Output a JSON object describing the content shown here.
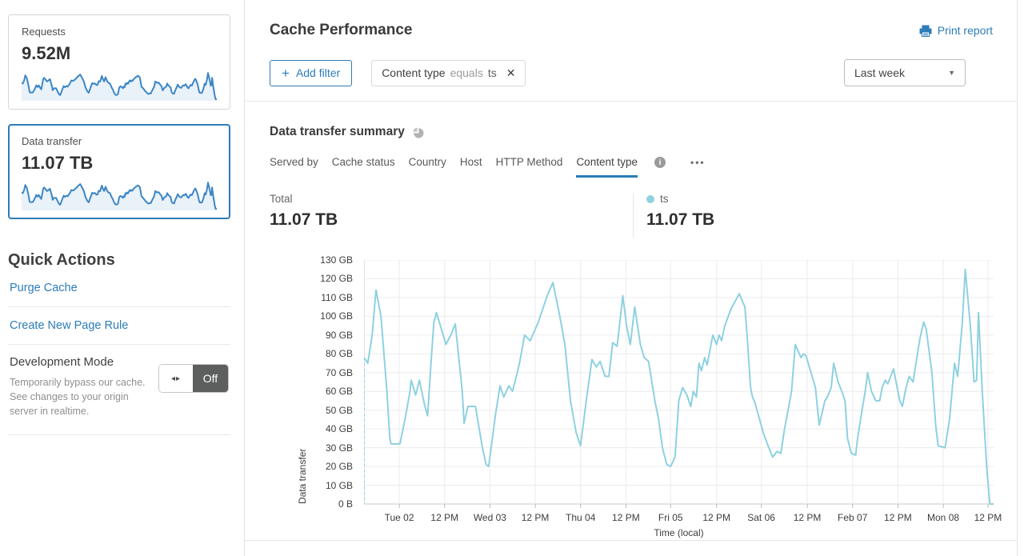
{
  "colors": {
    "accent": "#2c7cb8",
    "tab_underline": "#2a7cb8",
    "chart_line": "#8ed1e1",
    "spark_line": "#3c86c5",
    "spark_fill": "#e9f1f9",
    "toggle_off_bg": "#5d5f5e",
    "gridline": "#ececec",
    "axis_line": "#c8c8c8"
  },
  "sidebar": {
    "cards": [
      {
        "label": "Requests",
        "value": "9.52M",
        "selected": false
      },
      {
        "label": "Data transfer",
        "value": "11.07 TB",
        "selected": true
      }
    ],
    "quick_actions": {
      "title": "Quick Actions",
      "links": [
        "Purge Cache",
        "Create New Page Rule"
      ],
      "dev_mode": {
        "title": "Development Mode",
        "description": "Temporarily bypass our cache. See changes to your origin server in realtime.",
        "toggle_label": "Off"
      }
    }
  },
  "header": {
    "title": "Cache Performance",
    "print_label": "Print report",
    "time_range": "Last week"
  },
  "filters": {
    "add_label": "Add filter",
    "chip": {
      "field": "Content type",
      "operator": "equals",
      "value": "ts"
    }
  },
  "summary": {
    "title": "Data transfer summary",
    "tabs": [
      "Served by",
      "Cache status",
      "Country",
      "Host",
      "HTTP Method",
      "Content type"
    ],
    "active_tab": "Content type",
    "more_label": "•••",
    "total_label": "Total",
    "total_value": "11.07 TB",
    "series_label": "ts",
    "series_value": "11.07 TB"
  },
  "chart_data": {
    "type": "line",
    "title": "Data transfer summary",
    "xlabel": "Time (local)",
    "ylabel": "Data transfer",
    "ylim": [
      0,
      130
    ],
    "y_unit": "GB",
    "grid": true,
    "start_boundary_dashed": true,
    "y_ticks": [
      "0 B",
      "10 GB",
      "20 GB",
      "30 GB",
      "40 GB",
      "50 GB",
      "60 GB",
      "70 GB",
      "80 GB",
      "90 GB",
      "100 GB",
      "110 GB",
      "120 GB",
      "130 GB"
    ],
    "x_ticks": [
      {
        "label": "Tue 02",
        "pos": 5.6
      },
      {
        "label": "12 PM",
        "pos": 12.8
      },
      {
        "label": "Wed 03",
        "pos": 20.0
      },
      {
        "label": "12 PM",
        "pos": 27.2
      },
      {
        "label": "Thu 04",
        "pos": 34.4
      },
      {
        "label": "12 PM",
        "pos": 41.6
      },
      {
        "label": "Fri 05",
        "pos": 48.7
      },
      {
        "label": "12 PM",
        "pos": 56.0
      },
      {
        "label": "Sat 06",
        "pos": 63.1
      },
      {
        "label": "12 PM",
        "pos": 70.4
      },
      {
        "label": "Feb 07",
        "pos": 77.6
      },
      {
        "label": "12 PM",
        "pos": 84.8
      },
      {
        "label": "Mon 08",
        "pos": 92.0
      },
      {
        "label": "12 PM",
        "pos": 99.1
      }
    ],
    "series": [
      {
        "name": "ts",
        "color": "#8ed1e1",
        "points": [
          [
            0,
            78
          ],
          [
            0.6,
            75
          ],
          [
            1.3,
            90
          ],
          [
            1.9,
            114
          ],
          [
            2.7,
            100
          ],
          [
            3.6,
            62
          ],
          [
            4.1,
            35
          ],
          [
            4.3,
            32
          ],
          [
            5.7,
            32
          ],
          [
            6.5,
            45
          ],
          [
            7.3,
            60
          ],
          [
            7.5,
            66
          ],
          [
            8.2,
            58
          ],
          [
            8.8,
            66
          ],
          [
            9.6,
            53
          ],
          [
            10.1,
            47
          ],
          [
            10.7,
            78
          ],
          [
            11.1,
            97
          ],
          [
            11.5,
            102
          ],
          [
            12.4,
            92
          ],
          [
            13,
            85
          ],
          [
            13.8,
            90
          ],
          [
            14.5,
            96
          ],
          [
            15.6,
            60
          ],
          [
            15.9,
            43
          ],
          [
            16.5,
            52
          ],
          [
            17.7,
            52
          ],
          [
            18.8,
            30
          ],
          [
            19.4,
            21
          ],
          [
            19.8,
            20
          ],
          [
            20.4,
            35
          ],
          [
            20.9,
            48
          ],
          [
            21.6,
            63
          ],
          [
            22.2,
            57
          ],
          [
            23,
            63
          ],
          [
            23.6,
            60
          ],
          [
            24.7,
            75
          ],
          [
            25.5,
            90
          ],
          [
            26.4,
            87
          ],
          [
            27.7,
            97
          ],
          [
            29,
            110
          ],
          [
            30,
            118
          ],
          [
            31.1,
            100
          ],
          [
            31.9,
            85
          ],
          [
            32.8,
            55
          ],
          [
            33.7,
            38
          ],
          [
            34.4,
            31
          ],
          [
            35.3,
            55
          ],
          [
            36.2,
            77
          ],
          [
            36.9,
            73
          ],
          [
            37.5,
            76
          ],
          [
            38.3,
            68
          ],
          [
            38.9,
            68
          ],
          [
            39.5,
            86
          ],
          [
            40.2,
            84
          ],
          [
            41.1,
            111
          ],
          [
            41.7,
            95
          ],
          [
            42.3,
            85
          ],
          [
            43,
            105
          ],
          [
            43.9,
            85
          ],
          [
            44.5,
            78
          ],
          [
            45.2,
            76
          ],
          [
            46.2,
            55
          ],
          [
            46.8,
            45
          ],
          [
            47.4,
            30
          ],
          [
            48.1,
            21
          ],
          [
            48.7,
            20
          ],
          [
            49.4,
            25
          ],
          [
            50,
            55
          ],
          [
            50.6,
            62
          ],
          [
            51.3,
            58
          ],
          [
            51.9,
            52
          ],
          [
            52.3,
            60
          ],
          [
            52.8,
            57
          ],
          [
            53.2,
            75
          ],
          [
            53.6,
            71
          ],
          [
            54.1,
            78
          ],
          [
            54.5,
            74
          ],
          [
            55.4,
            90
          ],
          [
            56,
            85
          ],
          [
            56.4,
            90
          ],
          [
            56.8,
            87
          ],
          [
            57.3,
            95
          ],
          [
            58.3,
            104
          ],
          [
            59.6,
            112
          ],
          [
            60.5,
            105
          ],
          [
            60.8,
            92
          ],
          [
            61.4,
            62
          ],
          [
            61.7,
            57
          ],
          [
            62.1,
            54
          ],
          [
            63.4,
            38
          ],
          [
            64.3,
            30
          ],
          [
            64.9,
            25
          ],
          [
            65.6,
            28
          ],
          [
            66.2,
            27
          ],
          [
            66.8,
            40
          ],
          [
            67.9,
            60
          ],
          [
            68.5,
            85
          ],
          [
            69.4,
            78
          ],
          [
            69.8,
            80
          ],
          [
            70.2,
            79
          ],
          [
            71,
            70
          ],
          [
            71.7,
            62
          ],
          [
            72.3,
            42
          ],
          [
            73.2,
            55
          ],
          [
            73.6,
            57
          ],
          [
            74.2,
            62
          ],
          [
            74.6,
            75
          ],
          [
            75.3,
            65
          ],
          [
            75.9,
            60
          ],
          [
            76.4,
            55
          ],
          [
            76.8,
            35
          ],
          [
            77.4,
            27
          ],
          [
            78.1,
            26
          ],
          [
            78.4,
            35
          ],
          [
            79.1,
            50
          ],
          [
            79.6,
            60
          ],
          [
            80,
            70
          ],
          [
            80.6,
            60
          ],
          [
            81.3,
            55
          ],
          [
            81.9,
            55
          ],
          [
            82.3,
            62
          ],
          [
            82.8,
            66
          ],
          [
            83.2,
            64
          ],
          [
            84.1,
            72
          ],
          [
            85.1,
            55
          ],
          [
            85.5,
            52
          ],
          [
            86.1,
            62
          ],
          [
            86.6,
            68
          ],
          [
            87,
            66
          ],
          [
            87.2,
            65
          ],
          [
            87.9,
            80
          ],
          [
            88.3,
            88
          ],
          [
            88.9,
            97
          ],
          [
            89.3,
            93
          ],
          [
            90.2,
            70
          ],
          [
            90.8,
            42
          ],
          [
            91.2,
            31
          ],
          [
            92.3,
            30
          ],
          [
            93,
            45
          ],
          [
            93.8,
            75
          ],
          [
            94.3,
            68
          ],
          [
            95,
            95
          ],
          [
            95.5,
            125
          ],
          [
            96.3,
            95
          ],
          [
            96.9,
            65
          ],
          [
            97.3,
            66
          ],
          [
            97.6,
            102
          ],
          [
            98.2,
            60
          ],
          [
            98.9,
            20
          ],
          [
            99.4,
            0
          ],
          [
            100,
            0
          ]
        ]
      }
    ]
  }
}
